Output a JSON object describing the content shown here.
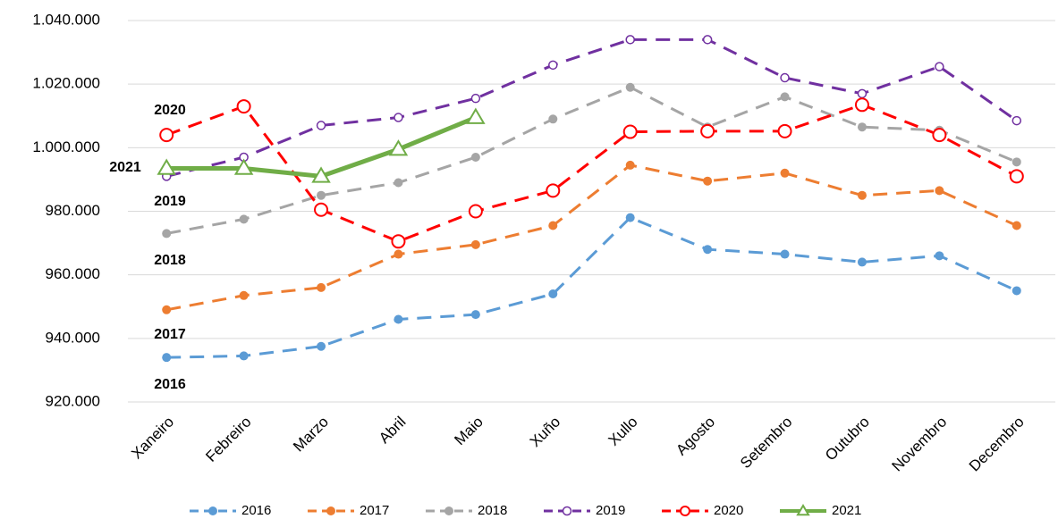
{
  "chart_data": {
    "type": "line",
    "categories": [
      "Xaneiro",
      "Febreiro",
      "Marzo",
      "Abril",
      "Maio",
      "Xuño",
      "Xullo",
      "Agosto",
      "Setembro",
      "Outubro",
      "Novembro",
      "Decembro"
    ],
    "series": [
      {
        "name": "2016",
        "color": "#5b9bd5",
        "marker": "circle",
        "dashed": true,
        "values": [
          934000,
          934500,
          937500,
          946000,
          947500,
          954000,
          978000,
          968000,
          966500,
          964000,
          966000,
          955000
        ]
      },
      {
        "name": "2017",
        "color": "#ed7d31",
        "marker": "circle",
        "dashed": true,
        "values": [
          949000,
          953500,
          956000,
          966500,
          969500,
          975500,
          994500,
          989500,
          992000,
          985000,
          986500,
          975500
        ]
      },
      {
        "name": "2018",
        "color": "#a5a5a5",
        "marker": "circle",
        "dashed": true,
        "values": [
          973000,
          977500,
          985000,
          989000,
          997000,
          1009000,
          1019000,
          1006500,
          1016000,
          1006500,
          1005500,
          995500
        ]
      },
      {
        "name": "2019",
        "color": "#7030a0",
        "marker": "hollow-circle",
        "dashed": true,
        "values": [
          991000,
          997000,
          1007000,
          1009500,
          1015500,
          1026000,
          1034000,
          1034000,
          1022000,
          1017000,
          1025500,
          1008500
        ]
      },
      {
        "name": "2020",
        "color": "#ff0000",
        "marker": "hollow-circle-large",
        "dashed": true,
        "values": [
          1004000,
          1013000,
          980500,
          970500,
          980000,
          986500,
          1005000,
          1005200,
          1005200,
          1013500,
          1004000,
          991000
        ]
      },
      {
        "name": "2021",
        "color": "#70ad47",
        "marker": "hollow-triangle",
        "dashed": false,
        "values": [
          993500,
          993500,
          991000,
          999500,
          1009500,
          null,
          null,
          null,
          null,
          null,
          null,
          null
        ]
      }
    ],
    "annotations": [
      "2020",
      "2021",
      "2019",
      "2018",
      "2017",
      "2016"
    ],
    "ylim": [
      920000,
      1040000
    ],
    "yticks": [
      {
        "value": 920000,
        "label": "920.000"
      },
      {
        "value": 940000,
        "label": "940.000"
      },
      {
        "value": 960000,
        "label": "960.000"
      },
      {
        "value": 980000,
        "label": "980.000"
      },
      {
        "value": 1000000,
        "label": "1.000.000"
      },
      {
        "value": 1020000,
        "label": "1.020.000"
      },
      {
        "value": 1040000,
        "label": "1.040.000"
      }
    ],
    "grid": true,
    "legend": "bottom"
  }
}
